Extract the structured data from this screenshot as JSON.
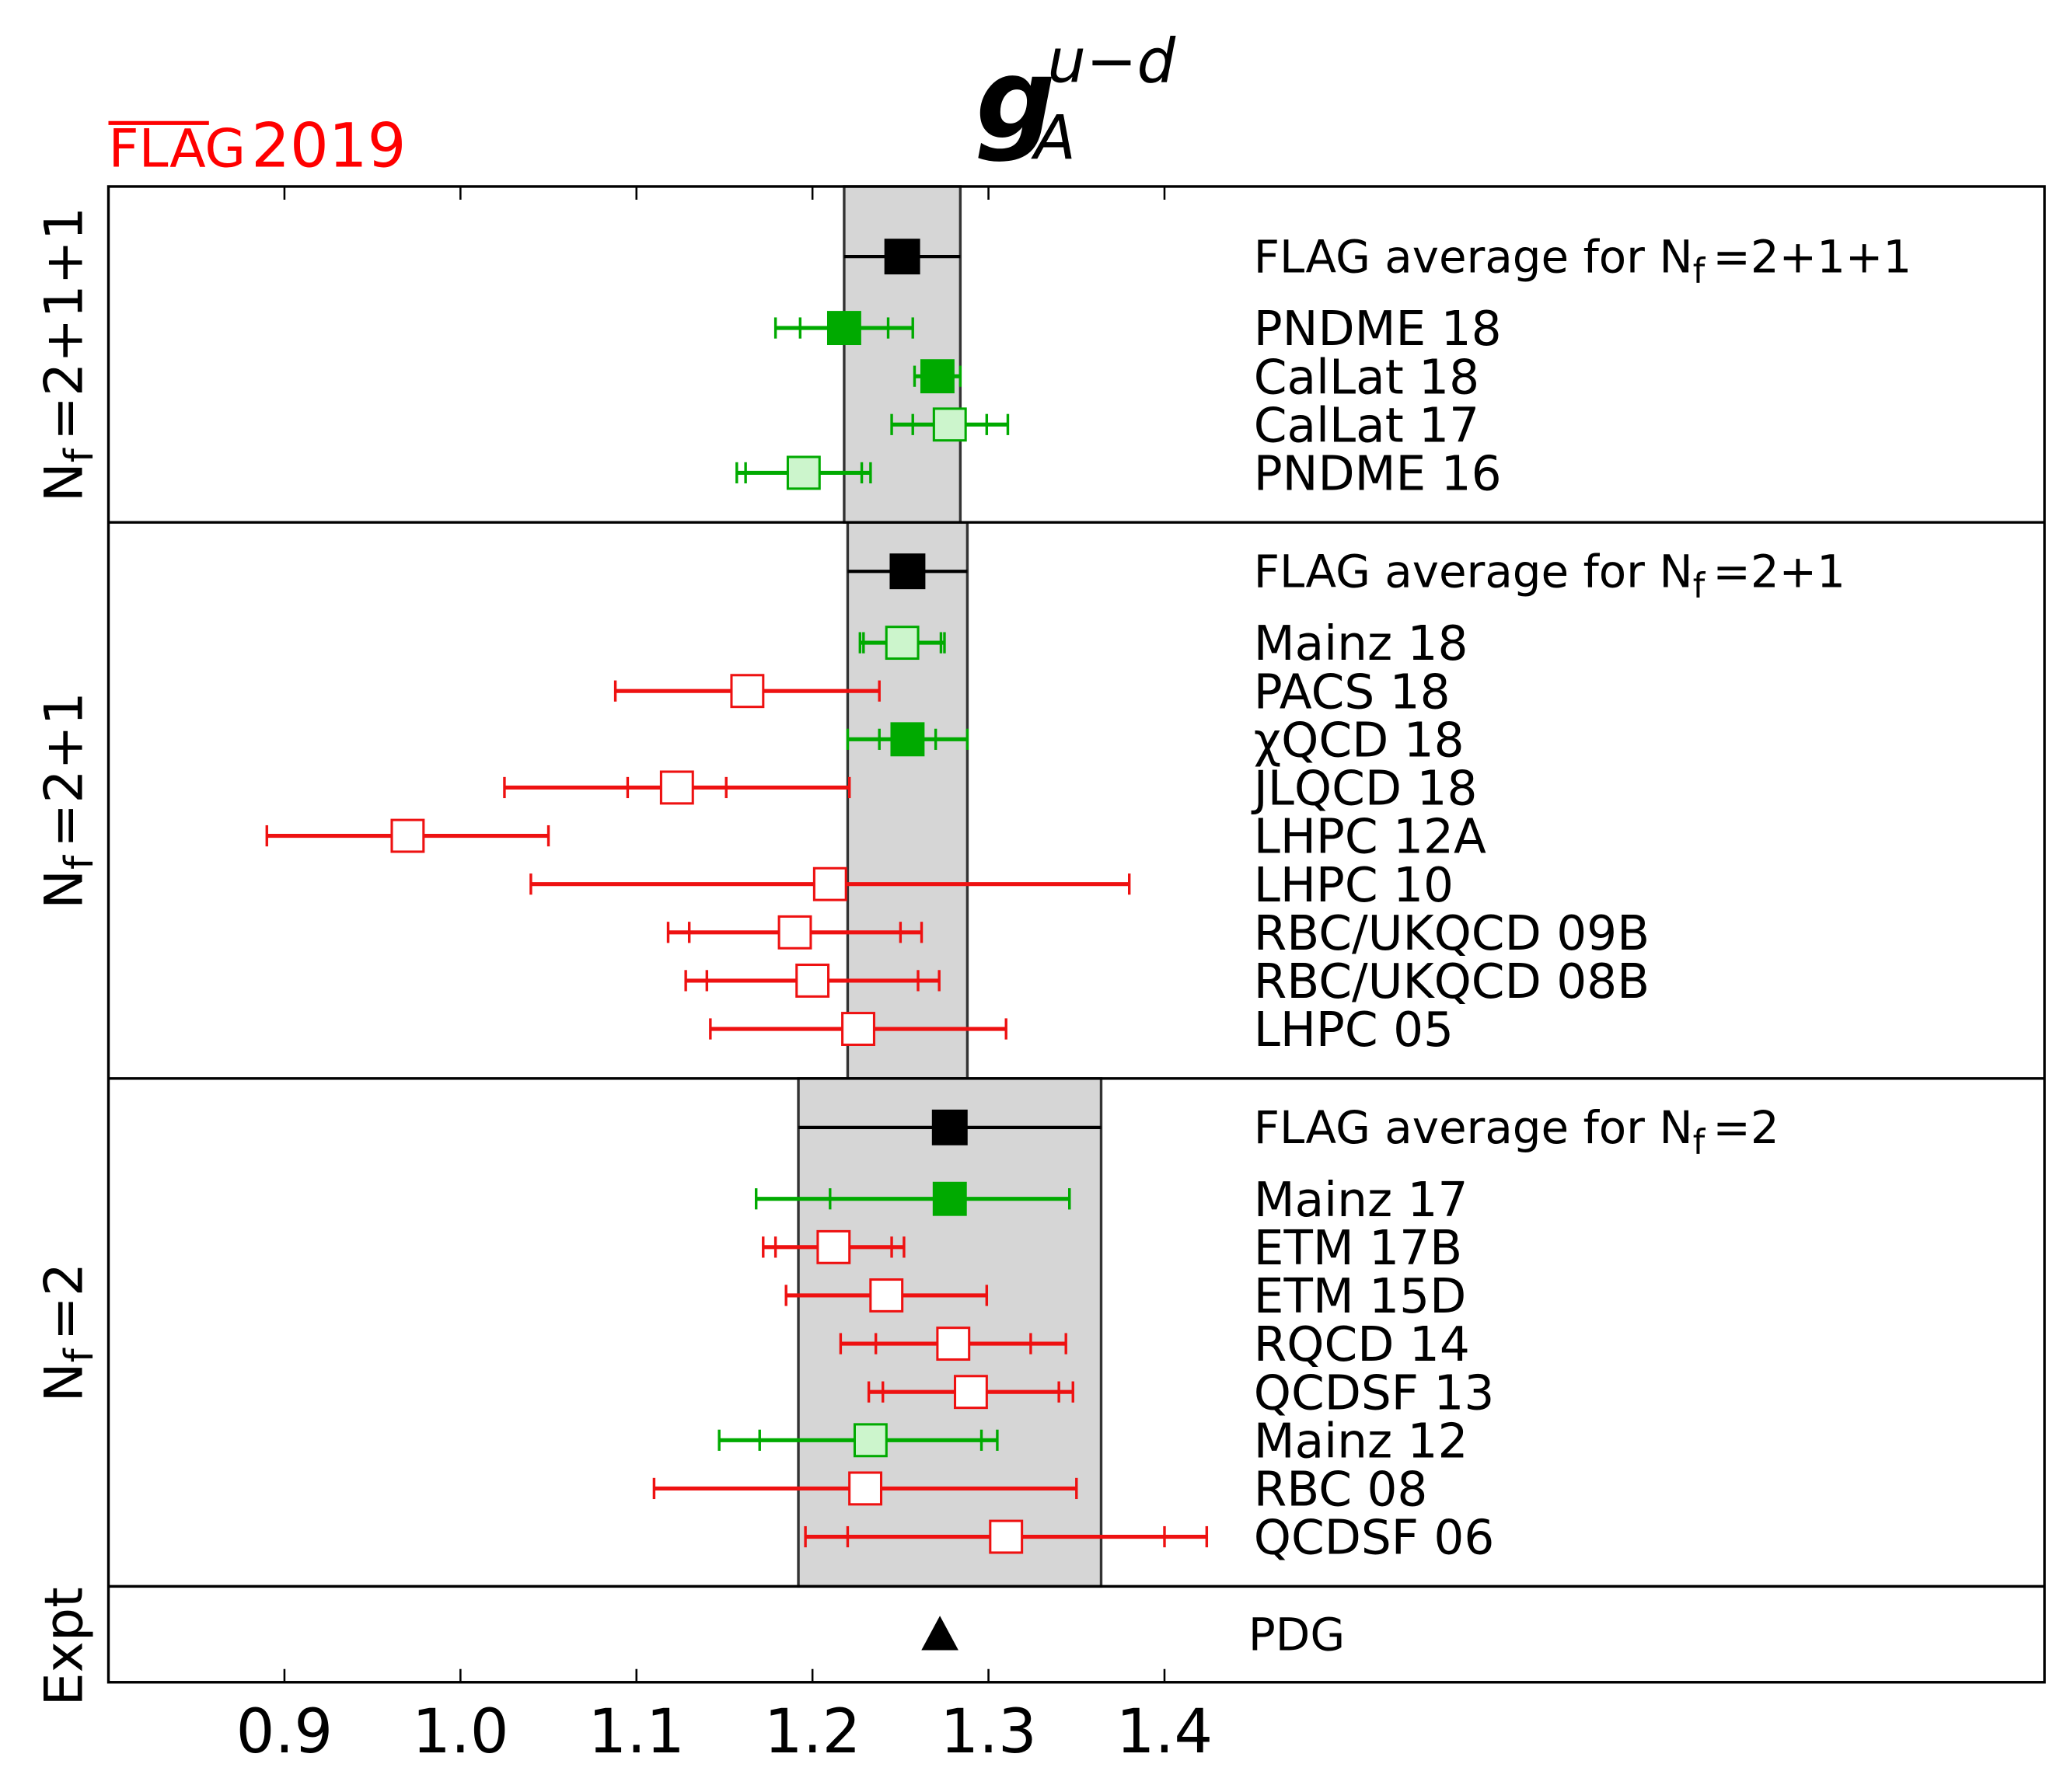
{
  "chart_data": {
    "type": "forest",
    "logo": "FLAG",
    "logo_year": "2019",
    "logo_color": "#ff0000",
    "title": [
      "g",
      "u−d",
      "A"
    ],
    "xlim": [
      0.8,
      1.9
    ],
    "xticks": [
      0.9,
      {
        "value": 1.0,
        "label": "1.0"
      },
      1.1,
      1.2,
      1.3,
      1.4
    ],
    "band_color": "#d6d6d6",
    "panels": [
      {
        "group_label": [
          "N",
          "f",
          "=2+1+1"
        ],
        "average": {
          "label": [
            "FLAG average for N",
            "f",
            "=2+1+1"
          ],
          "value": 1.251,
          "err": 0.033,
          "color": "#000000"
        },
        "entries": [
          {
            "name": "PNDME 18",
            "value": 1.218,
            "stat": 0.025,
            "err_minus": 0.039,
            "err_plus": 0.039,
            "color": "#00aa00",
            "fill": "filled"
          },
          {
            "name": "CalLat 18",
            "value": 1.271,
            "err_minus": 0.013,
            "err_plus": 0.013,
            "color": "#00aa00",
            "fill": "filled"
          },
          {
            "name": "CalLat 17",
            "value": 1.278,
            "stat": 0.021,
            "err_minus": 0.033,
            "err_plus": 0.033,
            "color": "#00aa00",
            "fill": "light"
          },
          {
            "name": "PNDME 16",
            "value": 1.195,
            "stat": 0.033,
            "err_minus": 0.038,
            "err_plus": 0.038,
            "color": "#00aa00",
            "fill": "light"
          }
        ]
      },
      {
        "group_label": [
          "N",
          "f",
          "=2+1"
        ],
        "average": {
          "label": [
            "FLAG average for N",
            "f",
            "=2+1"
          ],
          "value": 1.254,
          "err": 0.034,
          "color": "#000000"
        },
        "entries": [
          {
            "name": "Mainz 18",
            "value": 1.251,
            "stat": 0.022,
            "err_minus": 0.024,
            "err_plus": 0.024,
            "color": "#00aa00",
            "fill": "light"
          },
          {
            "name": "PACS 18",
            "value": 1.163,
            "err_minus": 0.075,
            "err_plus": 0.075,
            "color": "#ee1111",
            "fill": "open"
          },
          {
            "name": "χQCD 18",
            "value": 1.254,
            "stat": 0.016,
            "err_minus": 0.034,
            "err_plus": 0.034,
            "color": "#00aa00",
            "fill": "filled"
          },
          {
            "name": "JLQCD 18",
            "value": 1.123,
            "stat": 0.028,
            "err_minus": 0.098,
            "err_plus": 0.098,
            "color": "#ee1111",
            "fill": "open"
          },
          {
            "name": "LHPC 12A",
            "value": 0.97,
            "err_minus": 0.08,
            "err_plus": 0.08,
            "color": "#ee1111",
            "fill": "open"
          },
          {
            "name": "LHPC 10",
            "value": 1.21,
            "err_minus": 0.17,
            "err_plus": 0.17,
            "color": "#ee1111",
            "fill": "open"
          },
          {
            "name": "RBC/UKQCD 09B",
            "value": 1.19,
            "stat": 0.06,
            "err_minus": 0.072,
            "err_plus": 0.072,
            "color": "#ee1111",
            "fill": "open"
          },
          {
            "name": "RBC/UKQCD 08B",
            "value": 1.2,
            "stat": 0.06,
            "err_minus": 0.072,
            "err_plus": 0.072,
            "color": "#ee1111",
            "fill": "open"
          },
          {
            "name": "LHPC 05",
            "value": 1.226,
            "err_minus": 0.084,
            "err_plus": 0.084,
            "color": "#ee1111",
            "fill": "open"
          }
        ]
      },
      {
        "group_label": [
          "N",
          "f",
          "=2"
        ],
        "average": {
          "label": [
            "FLAG average for N",
            "f",
            "=2"
          ],
          "value": 1.278,
          "err": 0.086,
          "color": "#000000"
        },
        "entries": [
          {
            "name": "Mainz 17",
            "value": 1.278,
            "stat": 0.068,
            "err_minus": 0.11,
            "err_plus": 0.068,
            "color": "#00aa00",
            "fill": "filled"
          },
          {
            "name": "ETM 17B",
            "value": 1.212,
            "stat": 0.033,
            "err_minus": 0.04,
            "err_plus": 0.04,
            "color": "#ee1111",
            "fill": "open"
          },
          {
            "name": "ETM 15D",
            "value": 1.242,
            "err_minus": 0.057,
            "err_plus": 0.057,
            "color": "#ee1111",
            "fill": "open"
          },
          {
            "name": "RQCD 14",
            "value": 1.28,
            "stat": 0.044,
            "err_minus": 0.064,
            "err_plus": 0.064,
            "color": "#ee1111",
            "fill": "open"
          },
          {
            "name": "QCDSF 13",
            "value": 1.29,
            "stat": 0.05,
            "err_minus": 0.058,
            "err_plus": 0.058,
            "color": "#ee1111",
            "fill": "open"
          },
          {
            "name": "Mainz 12",
            "value": 1.233,
            "stat": 0.063,
            "err_minus": 0.086,
            "err_plus": 0.072,
            "color": "#00aa00",
            "fill": "light"
          },
          {
            "name": "RBC 08",
            "value": 1.23,
            "err_minus": 0.12,
            "err_plus": 0.12,
            "color": "#ee1111",
            "fill": "open"
          },
          {
            "name": "QCDSF 06",
            "value": 1.31,
            "stat": 0.09,
            "err_minus": 0.114,
            "err_plus": 0.114,
            "color": "#ee1111",
            "fill": "open"
          }
        ]
      }
    ],
    "expt": {
      "group_label": "Expt",
      "name": "PDG",
      "value": 1.2724,
      "color": "#000000"
    }
  }
}
